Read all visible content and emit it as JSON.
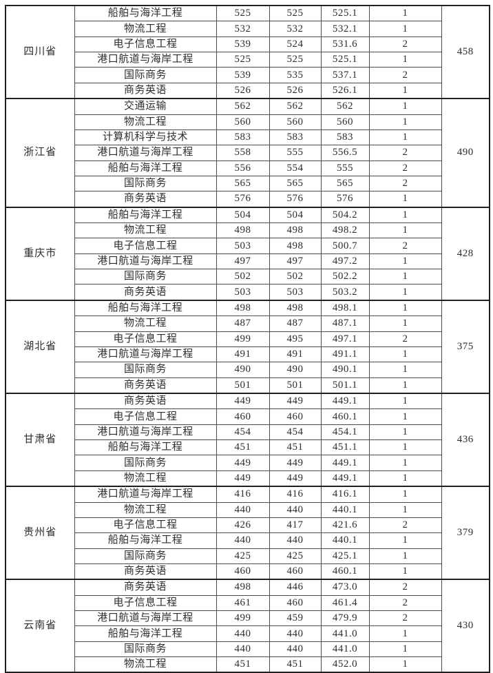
{
  "page": {
    "background_color": "#ffffff",
    "text_color": "#2d2d2d",
    "border_color": "#1f1f1f",
    "grid_color": "#4a4a4a"
  },
  "table": {
    "groups": [
      {
        "province": "四川省",
        "group_value": "458",
        "rows": [
          [
            "船舶与海洋工程",
            "525",
            "525",
            "525.1",
            "1"
          ],
          [
            "物流工程",
            "532",
            "532",
            "532.1",
            "1"
          ],
          [
            "电子信息工程",
            "539",
            "524",
            "531.6",
            "2"
          ],
          [
            "港口航道与海岸工程",
            "525",
            "525",
            "525.1",
            "1"
          ],
          [
            "国际商务",
            "539",
            "535",
            "537.1",
            "2"
          ],
          [
            "商务英语",
            "526",
            "526",
            "526.1",
            "1"
          ]
        ]
      },
      {
        "province": "浙江省",
        "group_value": "490",
        "rows": [
          [
            "交通运输",
            "562",
            "562",
            "562",
            "1"
          ],
          [
            "物流工程",
            "560",
            "560",
            "560",
            "1"
          ],
          [
            "计算机科学与技术",
            "583",
            "583",
            "583",
            "1"
          ],
          [
            "港口航道与海岸工程",
            "558",
            "555",
            "556.5",
            "2"
          ],
          [
            "船舶与海洋工程",
            "556",
            "554",
            "555",
            "2"
          ],
          [
            "国际商务",
            "565",
            "565",
            "565",
            "2"
          ],
          [
            "商务英语",
            "576",
            "576",
            "576",
            "1"
          ]
        ]
      },
      {
        "province": "重庆市",
        "group_value": "428",
        "rows": [
          [
            "船舶与海洋工程",
            "504",
            "504",
            "504.2",
            "1"
          ],
          [
            "物流工程",
            "498",
            "498",
            "498.2",
            "1"
          ],
          [
            "电子信息工程",
            "503",
            "498",
            "500.7",
            "2"
          ],
          [
            "港口航道与海岸工程",
            "497",
            "497",
            "497.2",
            "1"
          ],
          [
            "国际商务",
            "502",
            "502",
            "502.2",
            "1"
          ],
          [
            "商务英语",
            "503",
            "503",
            "503.2",
            "1"
          ]
        ]
      },
      {
        "province": "湖北省",
        "group_value": "375",
        "rows": [
          [
            "船舶与海洋工程",
            "498",
            "498",
            "498.1",
            "1"
          ],
          [
            "物流工程",
            "487",
            "487",
            "487.1",
            "1"
          ],
          [
            "电子信息工程",
            "499",
            "495",
            "497.1",
            "2"
          ],
          [
            "港口航道与海岸工程",
            "491",
            "491",
            "491.1",
            "1"
          ],
          [
            "国际商务",
            "490",
            "490",
            "490.1",
            "1"
          ],
          [
            "商务英语",
            "501",
            "501",
            "501.1",
            "1"
          ]
        ]
      },
      {
        "province": "甘肃省",
        "group_value": "436",
        "rows": [
          [
            "商务英语",
            "449",
            "449",
            "449.1",
            "1"
          ],
          [
            "电子信息工程",
            "460",
            "460",
            "460.1",
            "1"
          ],
          [
            "港口航道与海岸工程",
            "454",
            "454",
            "454.1",
            "1"
          ],
          [
            "船舶与海洋工程",
            "451",
            "451",
            "451.1",
            "1"
          ],
          [
            "国际商务",
            "449",
            "449",
            "449.1",
            "1"
          ],
          [
            "物流工程",
            "449",
            "449",
            "449.1",
            "1"
          ]
        ]
      },
      {
        "province": "贵州省",
        "group_value": "379",
        "rows": [
          [
            "港口航道与海岸工程",
            "416",
            "416",
            "416.1",
            "1"
          ],
          [
            "物流工程",
            "440",
            "440",
            "440.1",
            "1"
          ],
          [
            "电子信息工程",
            "426",
            "417",
            "421.6",
            "2"
          ],
          [
            "船舶与海洋工程",
            "440",
            "440",
            "440.1",
            "1"
          ],
          [
            "国际商务",
            "425",
            "425",
            "425.1",
            "1"
          ],
          [
            "商务英语",
            "460",
            "460",
            "460.1",
            "1"
          ]
        ]
      },
      {
        "province": "云南省",
        "group_value": "430",
        "rows": [
          [
            "商务英语",
            "498",
            "446",
            "473.0",
            "2"
          ],
          [
            "电子信息工程",
            "461",
            "460",
            "461.4",
            "2"
          ],
          [
            "港口航道与海岸工程",
            "499",
            "459",
            "479.9",
            "2"
          ],
          [
            "船舶与海洋工程",
            "440",
            "440",
            "441.0",
            "1"
          ],
          [
            "国际商务",
            "440",
            "440",
            "441.0",
            "1"
          ],
          [
            "物流工程",
            "451",
            "451",
            "452.0",
            "1"
          ]
        ]
      }
    ]
  }
}
